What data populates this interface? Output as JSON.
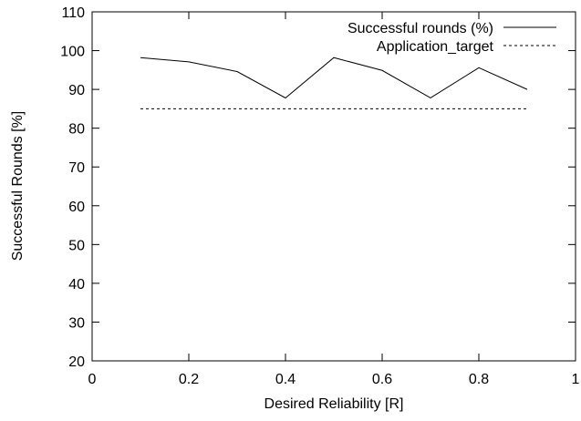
{
  "chart_data": {
    "type": "line",
    "xlabel": "Desired Reliability [R]",
    "ylabel": "Successful Rounds [%]",
    "xlim": [
      0,
      1
    ],
    "ylim": [
      20,
      110
    ],
    "x_ticks": [
      0,
      0.2,
      0.4,
      0.6,
      0.8,
      1
    ],
    "x_tick_labels": [
      "0",
      "0.2",
      "0.4",
      "0.6",
      "0.8",
      "1"
    ],
    "y_ticks": [
      20,
      30,
      40,
      50,
      60,
      70,
      80,
      90,
      100,
      110
    ],
    "y_tick_labels": [
      "20",
      "30",
      "40",
      "50",
      "60",
      "70",
      "80",
      "90",
      "100",
      "110"
    ],
    "grid": false,
    "legend_position": "top-right",
    "series": [
      {
        "name": "Successful rounds (%)",
        "style": "solid",
        "color": "#000000",
        "x": [
          0.1,
          0.2,
          0.3,
          0.4,
          0.5,
          0.6,
          0.7,
          0.8,
          0.9
        ],
        "y": [
          98.2,
          97.1,
          94.6,
          87.8,
          98.2,
          94.9,
          87.8,
          95.6,
          90.0
        ]
      },
      {
        "name": "Application_target",
        "style": "dashed",
        "color": "#000000",
        "x": [
          0.1,
          0.9
        ],
        "y": [
          85,
          85
        ]
      }
    ]
  }
}
